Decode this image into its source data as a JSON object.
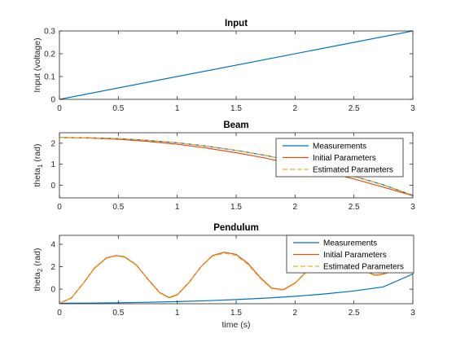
{
  "chart_data": [
    {
      "type": "line",
      "title": "Input",
      "xlabel": "",
      "ylabel": "Input (voltage)",
      "xlim": [
        0,
        3
      ],
      "ylim": [
        0,
        0.3
      ],
      "xticks": [
        "0",
        "0.5",
        "1",
        "1.5",
        "2",
        "2.5",
        "3"
      ],
      "yticks": [
        "0",
        "0.1",
        "0.2",
        "0.3"
      ],
      "grid": false,
      "legend": null,
      "series": [
        {
          "color": "#0072BD",
          "dash": false,
          "x": [
            0,
            3
          ],
          "y": [
            0,
            0.3
          ]
        }
      ]
    },
    {
      "type": "line",
      "title": "Beam",
      "xlabel": "",
      "ylabel": "theta",
      "ylabel_sub": "1",
      "ylabel_unit": " (rad)",
      "xlim": [
        0,
        3
      ],
      "ylim": [
        -0.6,
        2.5
      ],
      "xticks": [
        "0",
        "0.5",
        "1",
        "1.5",
        "2",
        "2.5",
        "3"
      ],
      "yticks": [
        "0",
        "1",
        "2"
      ],
      "grid": false,
      "legend": "top-right",
      "series": [
        {
          "name": "Measurements",
          "color": "#0072BD",
          "dash": false,
          "x": [
            0,
            0.25,
            0.5,
            0.75,
            1,
            1.25,
            1.5,
            1.75,
            2,
            2.25,
            2.5,
            2.75,
            3
          ],
          "y": [
            2.27,
            2.26,
            2.22,
            2.14,
            2.02,
            1.86,
            1.66,
            1.42,
            1.13,
            0.8,
            0.43,
            0.02,
            -0.48
          ]
        },
        {
          "name": "Initial Parameters",
          "color": "#D95319",
          "dash": false,
          "x": [
            0,
            0.25,
            0.5,
            0.75,
            1,
            1.25,
            1.5,
            1.75,
            2,
            2.25,
            2.5,
            2.75,
            3
          ],
          "y": [
            2.27,
            2.25,
            2.19,
            2.09,
            1.95,
            1.77,
            1.55,
            1.29,
            0.99,
            0.66,
            0.3,
            -0.09,
            -0.5
          ]
        },
        {
          "name": "Estimated Parameters",
          "color": "#EDB120",
          "dash": true,
          "x": [
            0,
            0.25,
            0.5,
            0.75,
            1,
            1.25,
            1.5,
            1.75,
            2,
            2.25,
            2.5,
            2.75,
            3
          ],
          "y": [
            2.27,
            2.26,
            2.22,
            2.14,
            2.02,
            1.86,
            1.66,
            1.42,
            1.13,
            0.8,
            0.43,
            0.02,
            -0.48
          ]
        }
      ]
    },
    {
      "type": "line",
      "title": "Pendulum",
      "xlabel": "time (s)",
      "ylabel": "theta",
      "ylabel_sub": "2",
      "ylabel_unit": " (rad)",
      "xlim": [
        0,
        3
      ],
      "ylim": [
        -1.3,
        4.8
      ],
      "xticks": [
        "0",
        "0.5",
        "1",
        "1.5",
        "2",
        "2.5",
        "3"
      ],
      "yticks": [
        "0",
        "2",
        "4"
      ],
      "grid": false,
      "legend": "top-right",
      "series": [
        {
          "name": "Measurements",
          "color": "#0072BD",
          "dash": false,
          "x": [
            0,
            0.25,
            0.5,
            0.75,
            1,
            1.25,
            1.5,
            1.75,
            2,
            2.25,
            2.5,
            2.75,
            3
          ],
          "y": [
            -1.25,
            -1.24,
            -1.21,
            -1.17,
            -1.11,
            -1.03,
            -0.93,
            -0.8,
            -0.64,
            -0.43,
            -0.16,
            0.2,
            1.35
          ]
        },
        {
          "name": "Initial Parameters",
          "color": "#D95319",
          "dash": false,
          "x": [
            0,
            0.1,
            0.2,
            0.3,
            0.4,
            0.48,
            0.55,
            0.65,
            0.75,
            0.85,
            0.93,
            1.0,
            1.1,
            1.2,
            1.3,
            1.4,
            1.5,
            1.6,
            1.7,
            1.8,
            1.9,
            2.0,
            2.1,
            2.2,
            2.3,
            2.4,
            2.5,
            2.6,
            2.68,
            2.75,
            2.85,
            2.95,
            3.0
          ],
          "y": [
            -1.25,
            -0.8,
            0.5,
            1.9,
            2.8,
            3.0,
            2.9,
            2.2,
            0.9,
            -0.3,
            -0.75,
            -0.5,
            0.6,
            2.0,
            3.0,
            3.3,
            3.1,
            2.3,
            1.1,
            0.1,
            -0.05,
            0.55,
            1.6,
            2.5,
            3.0,
            3.0,
            2.4,
            1.6,
            1.25,
            1.35,
            1.8,
            1.7,
            1.45
          ]
        },
        {
          "name": "Estimated Parameters",
          "color": "#EDB120",
          "dash": true,
          "x": [
            0,
            0.1,
            0.2,
            0.3,
            0.4,
            0.48,
            0.55,
            0.65,
            0.75,
            0.85,
            0.93,
            1.0,
            1.1,
            1.2,
            1.3,
            1.4,
            1.5,
            1.6,
            1.7,
            1.8,
            1.9,
            2.0,
            2.1,
            2.2,
            2.3,
            2.4,
            2.5,
            2.6,
            2.68,
            2.75,
            2.85,
            2.95,
            3.0
          ],
          "y": [
            -1.25,
            -0.82,
            0.45,
            1.85,
            2.75,
            2.95,
            2.85,
            2.15,
            0.85,
            -0.35,
            -0.8,
            -0.55,
            0.55,
            1.95,
            2.95,
            3.2,
            3.0,
            2.2,
            1.0,
            0.05,
            -0.1,
            0.5,
            1.55,
            2.45,
            2.95,
            2.95,
            2.35,
            1.55,
            1.2,
            1.3,
            1.75,
            1.65,
            1.45
          ]
        }
      ]
    }
  ]
}
